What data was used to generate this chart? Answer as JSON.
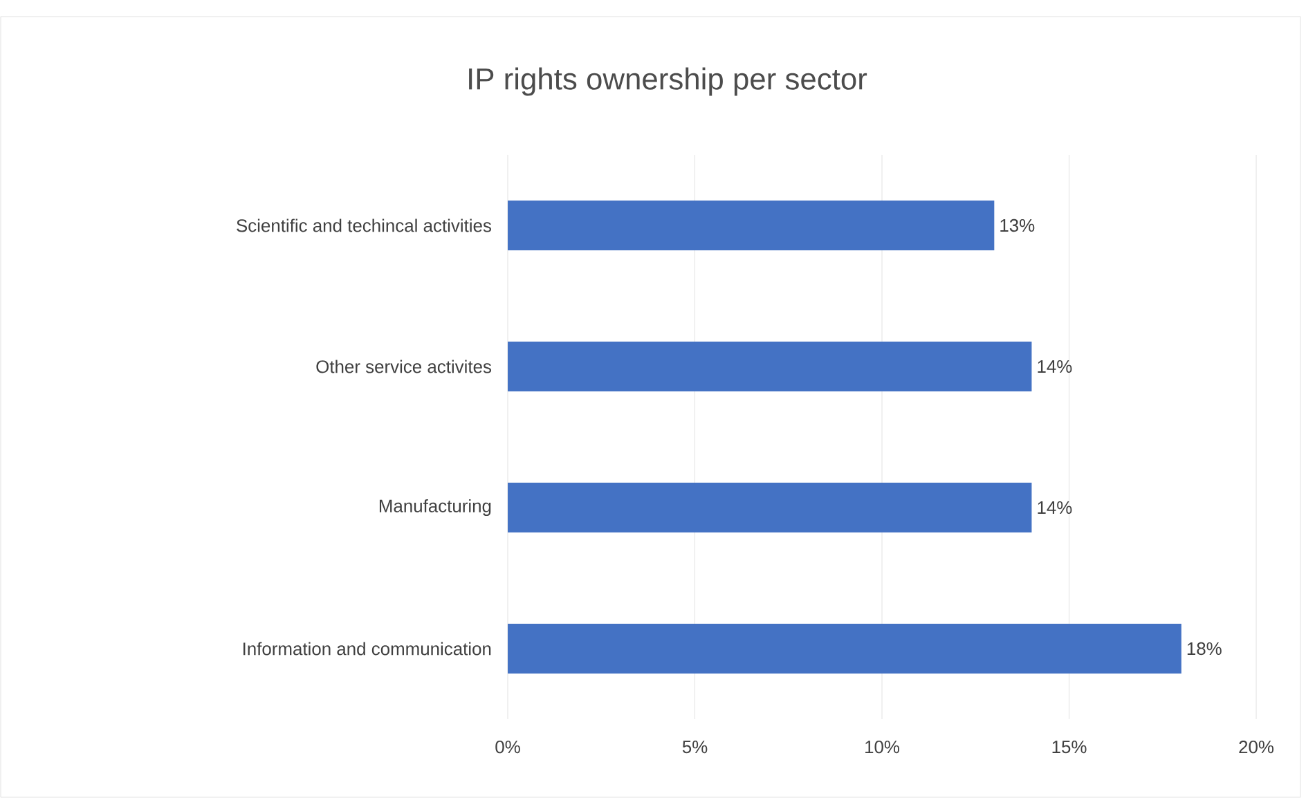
{
  "chart_data": {
    "type": "bar",
    "orientation": "horizontal",
    "title": "IP rights ownership per sector",
    "categories": [
      "Scientific and techincal activities",
      "Other service activites",
      "Manufacturing",
      "Information and communication"
    ],
    "values": [
      13,
      14,
      14,
      18
    ],
    "color": "#4472c4",
    "value_labels": [
      "13%",
      "14%",
      "14%",
      "18%"
    ],
    "xlim": [
      0,
      20
    ],
    "xticks": [
      {
        "value": 0,
        "label": "0%"
      },
      {
        "value": 5,
        "label": "5%"
      },
      {
        "value": 10,
        "label": "10%"
      },
      {
        "value": 15,
        "label": "15%"
      },
      {
        "value": 20,
        "label": "20%"
      }
    ],
    "grid": "x"
  }
}
